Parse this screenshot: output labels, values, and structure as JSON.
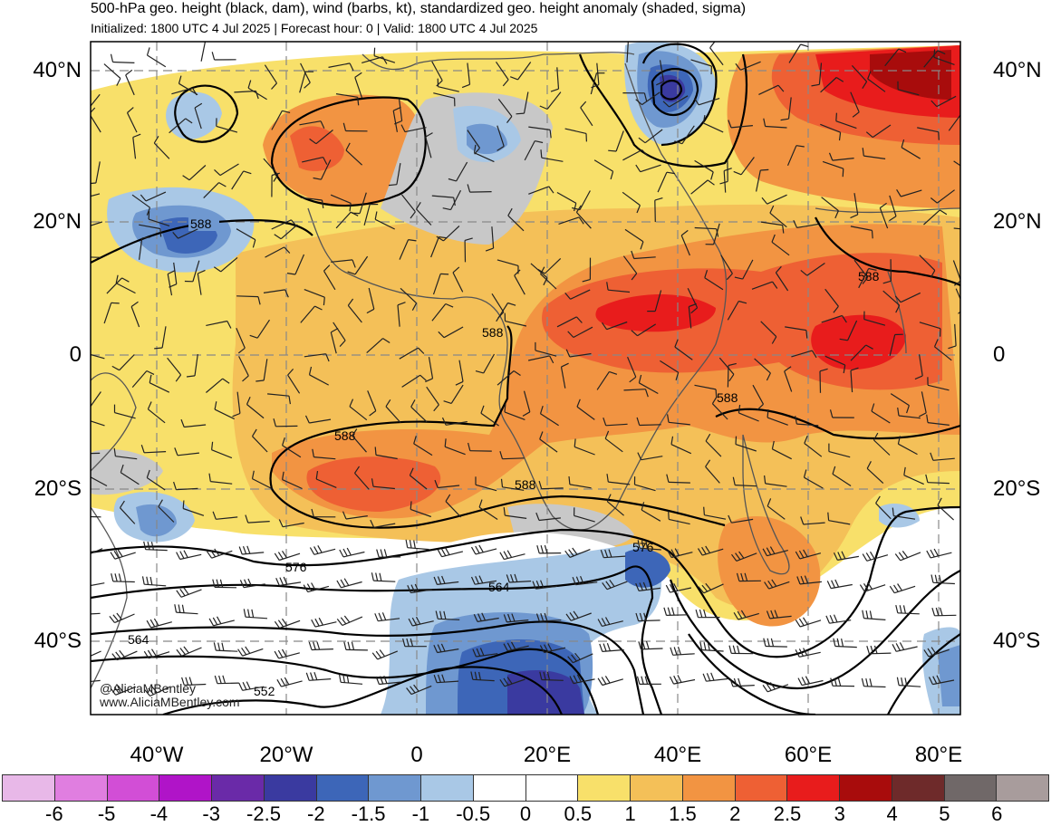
{
  "header": {
    "title": "500-hPa geo. height (black, dam), wind (barbs, kt), standardized geo. height anomaly (shaded, sigma)",
    "subtitle": "Initialized: 1800 UTC 4 Jul 2025 | Forecast hour: 0 | Valid: 1800 UTC 4 Jul 2025"
  },
  "map": {
    "lat_labels": [
      "40°N",
      "20°N",
      "0",
      "20°S",
      "40°S"
    ],
    "lon_labels": [
      "40°W",
      "20°W",
      "0",
      "20°E",
      "40°E",
      "60°E",
      "80°E"
    ],
    "contour_labels": [
      "588",
      "588",
      "588",
      "588",
      "588",
      "588",
      "576",
      "576",
      "564",
      "564",
      "552"
    ],
    "credit_handle": "@AliciaMBentley",
    "credit_url": "www.AliciaMBentley.com"
  },
  "colorbar": {
    "ticks": [
      "-6",
      "-5",
      "-4",
      "-3",
      "-2.5",
      "-2",
      "-1.5",
      "-1",
      "-0.5",
      "0",
      "0.5",
      "1",
      "1.5",
      "2",
      "2.5",
      "3",
      "4",
      "5",
      "6"
    ],
    "colors": [
      "#e8b8e8",
      "#e07ee0",
      "#d24ed6",
      "#b014c8",
      "#6a2aa8",
      "#3a3aa0",
      "#3d66b8",
      "#6f98d0",
      "#a9c8e6",
      "#ffffff",
      "#ffffff",
      "#f8e06a",
      "#f4c058",
      "#f29442",
      "#ee6034",
      "#e81c1c",
      "#a80c0c",
      "#6e2a2a",
      "#706868",
      "#a89c9c"
    ]
  }
}
